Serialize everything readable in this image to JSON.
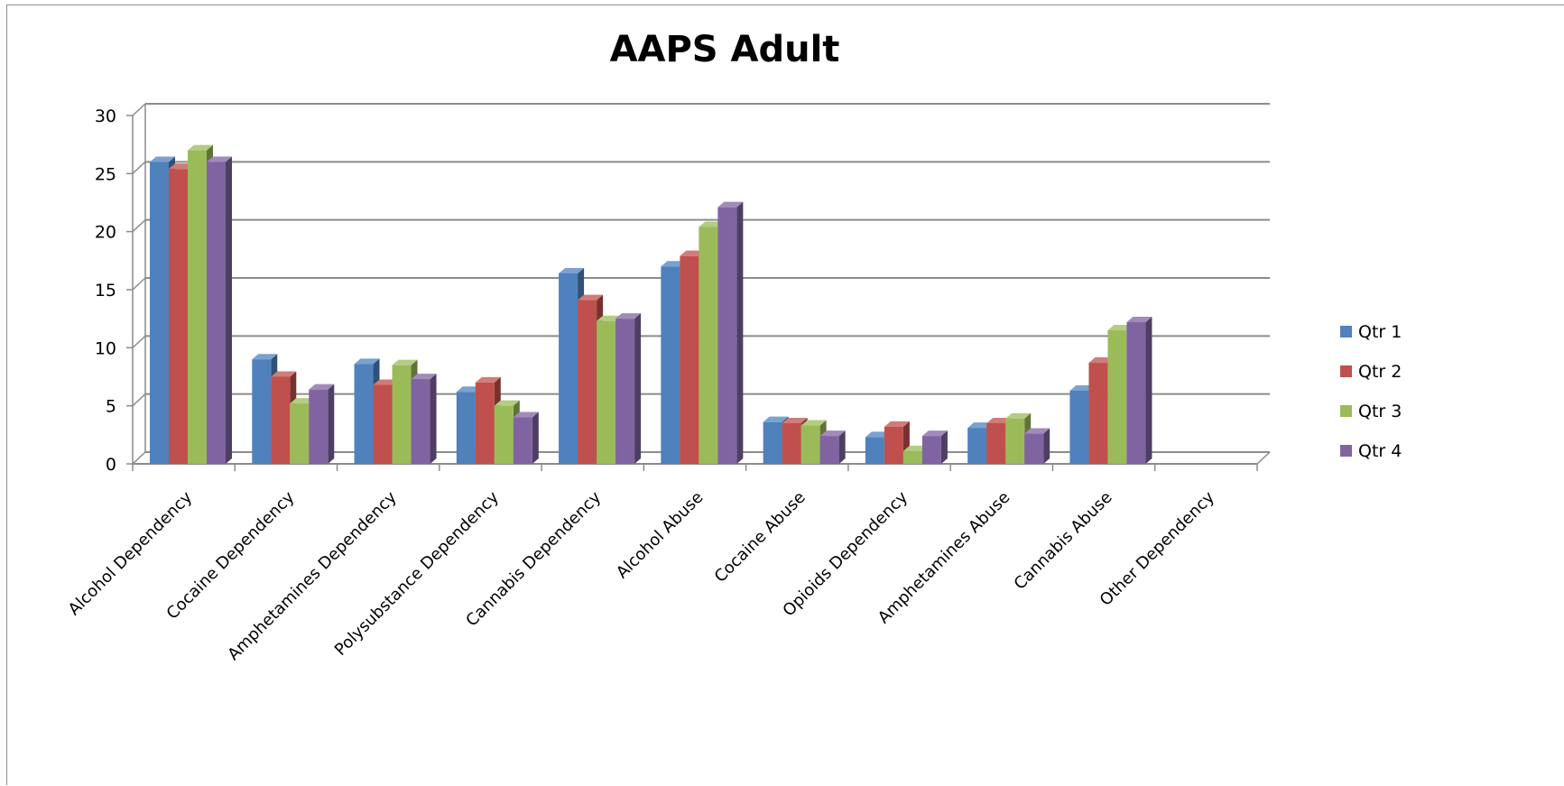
{
  "chart_data": {
    "type": "bar",
    "style": "3d-clustered-column",
    "title": "AAPS Adult",
    "xlabel": "",
    "ylabel": "",
    "ylim": [
      0,
      30
    ],
    "yticks": [
      0,
      5,
      10,
      15,
      20,
      25,
      30
    ],
    "grid": true,
    "legend_position": "right",
    "categories": [
      "Alcohol Dependency",
      "Cocaine Dependency",
      "Amphetamines Dependency",
      "Polysubstance Dependency",
      "Cannabis Dependency",
      "Alcohol Abuse",
      "Cocaine Abuse",
      "Opioids Dependency",
      "Amphetamines Abuse",
      "Cannabis Abuse",
      "Other Dependency"
    ],
    "series": [
      {
        "name": "Qtr 1",
        "color": "#4F81BD",
        "values": [
          26,
          9,
          8.6,
          6.2,
          16.4,
          17,
          3.6,
          2.3,
          3.1,
          6.3,
          0
        ]
      },
      {
        "name": "Qtr 2",
        "color": "#C0504D",
        "values": [
          25.4,
          7.5,
          6.8,
          7,
          14.1,
          17.9,
          3.5,
          3.2,
          3.5,
          8.7,
          0
        ]
      },
      {
        "name": "Qtr 3",
        "color": "#9BBB59",
        "values": [
          27,
          5.2,
          8.5,
          5,
          12.3,
          20.4,
          3.3,
          1.1,
          3.9,
          11.5,
          0
        ]
      },
      {
        "name": "Qtr 4",
        "color": "#8064A2",
        "values": [
          26,
          6.4,
          7.3,
          4,
          12.5,
          22.1,
          2.4,
          2.4,
          2.6,
          12.2,
          0
        ]
      }
    ]
  }
}
